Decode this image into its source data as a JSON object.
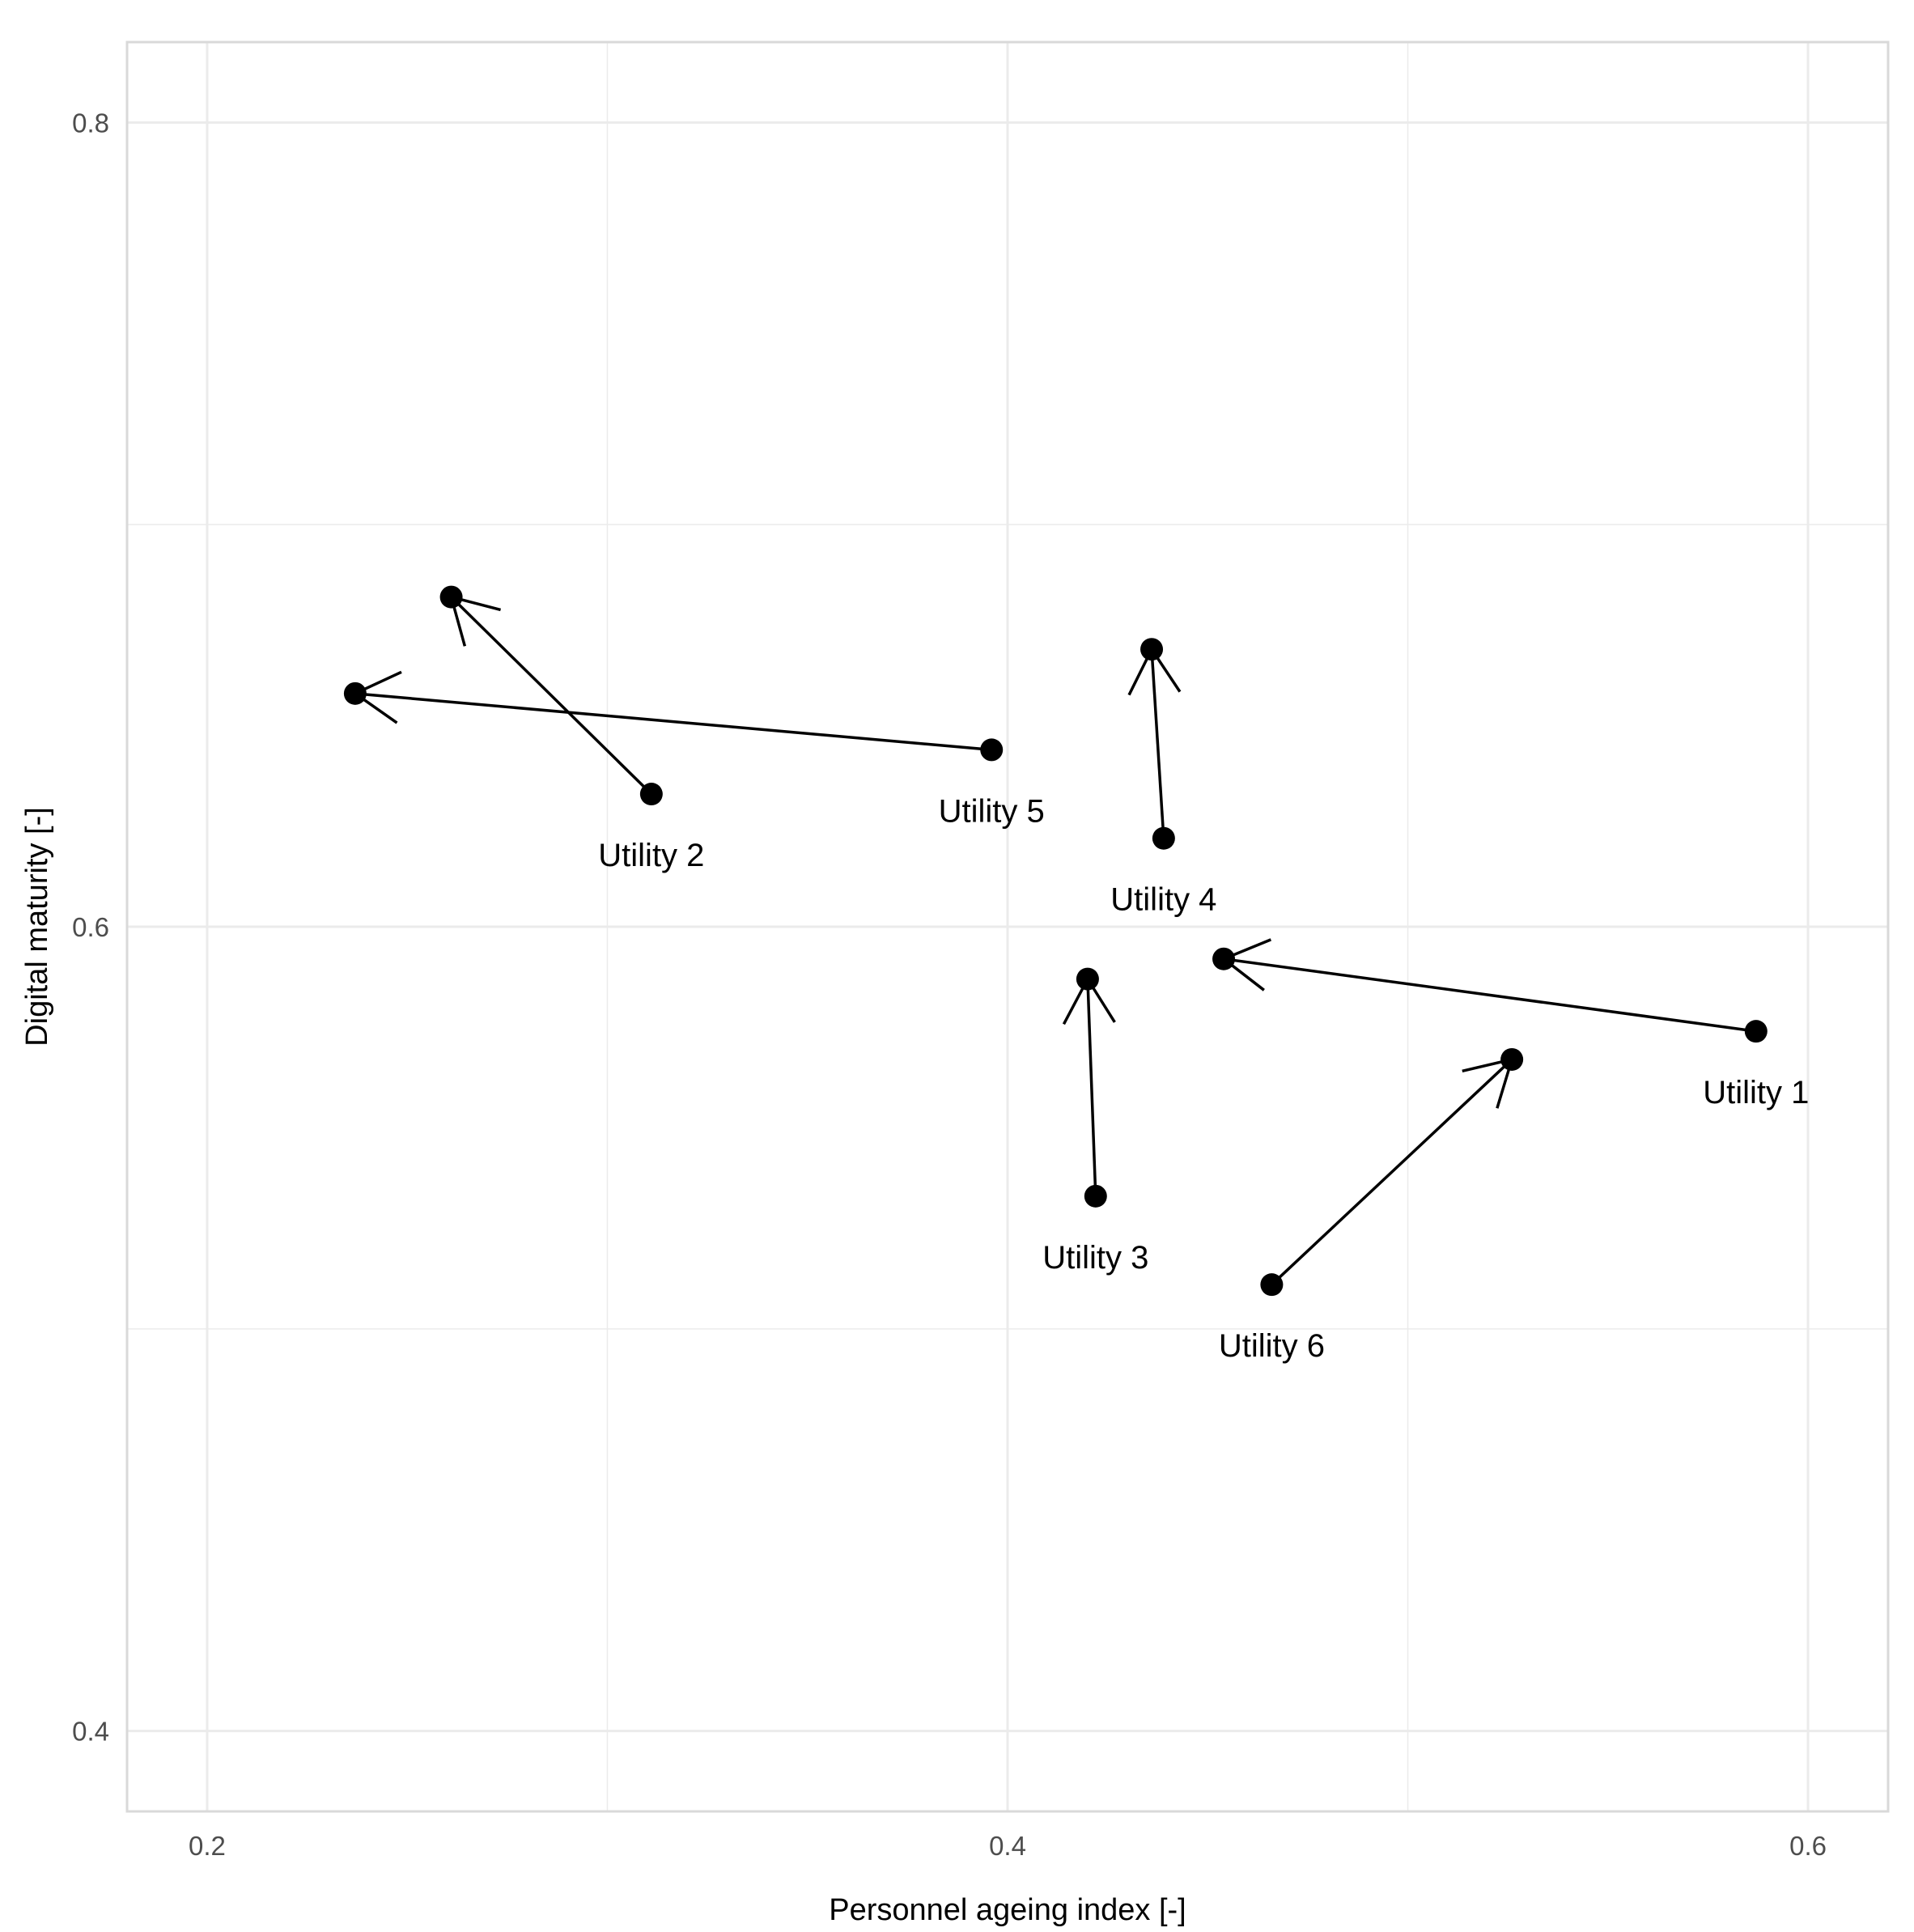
{
  "chart_data": {
    "type": "scatter",
    "title": "",
    "xlabel": "Personnel ageing index [-]",
    "ylabel": "Digital maturity [-]",
    "xlim": [
      0.18,
      0.62
    ],
    "ylim": [
      0.38,
      0.82
    ],
    "xticks": [
      {
        "value": 0.2,
        "label": "0.2"
      },
      {
        "value": 0.4,
        "label": "0.4"
      },
      {
        "value": 0.6,
        "label": "0.6"
      }
    ],
    "yticks": [
      {
        "value": 0.4,
        "label": "0.4"
      },
      {
        "value": 0.6,
        "label": "0.6"
      },
      {
        "value": 0.8,
        "label": "0.8"
      }
    ],
    "minor_grid_x": [
      0.3,
      0.5
    ],
    "minor_grid_y": [
      0.5,
      0.7
    ],
    "grid": true,
    "legend": "none",
    "colors": {
      "points": "#000000",
      "grid": "#ebebeb",
      "panel_border": "#d9d9d9"
    },
    "series": [
      {
        "label": "Utility 1",
        "from": [
          0.587,
          0.574
        ],
        "to": [
          0.454,
          0.592
        ]
      },
      {
        "label": "Utility 2",
        "from": [
          0.311,
          0.633
        ],
        "to": [
          0.261,
          0.682
        ]
      },
      {
        "label": "Utility 3",
        "from": [
          0.422,
          0.533
        ],
        "to": [
          0.42,
          0.587
        ]
      },
      {
        "label": "Utility 4",
        "from": [
          0.439,
          0.622
        ],
        "to": [
          0.436,
          0.669
        ]
      },
      {
        "label": "Utility 5",
        "from": [
          0.396,
          0.644
        ],
        "to": [
          0.237,
          0.658
        ]
      },
      {
        "label": "Utility 6",
        "from": [
          0.466,
          0.511
        ],
        "to": [
          0.526,
          0.567
        ]
      }
    ]
  }
}
